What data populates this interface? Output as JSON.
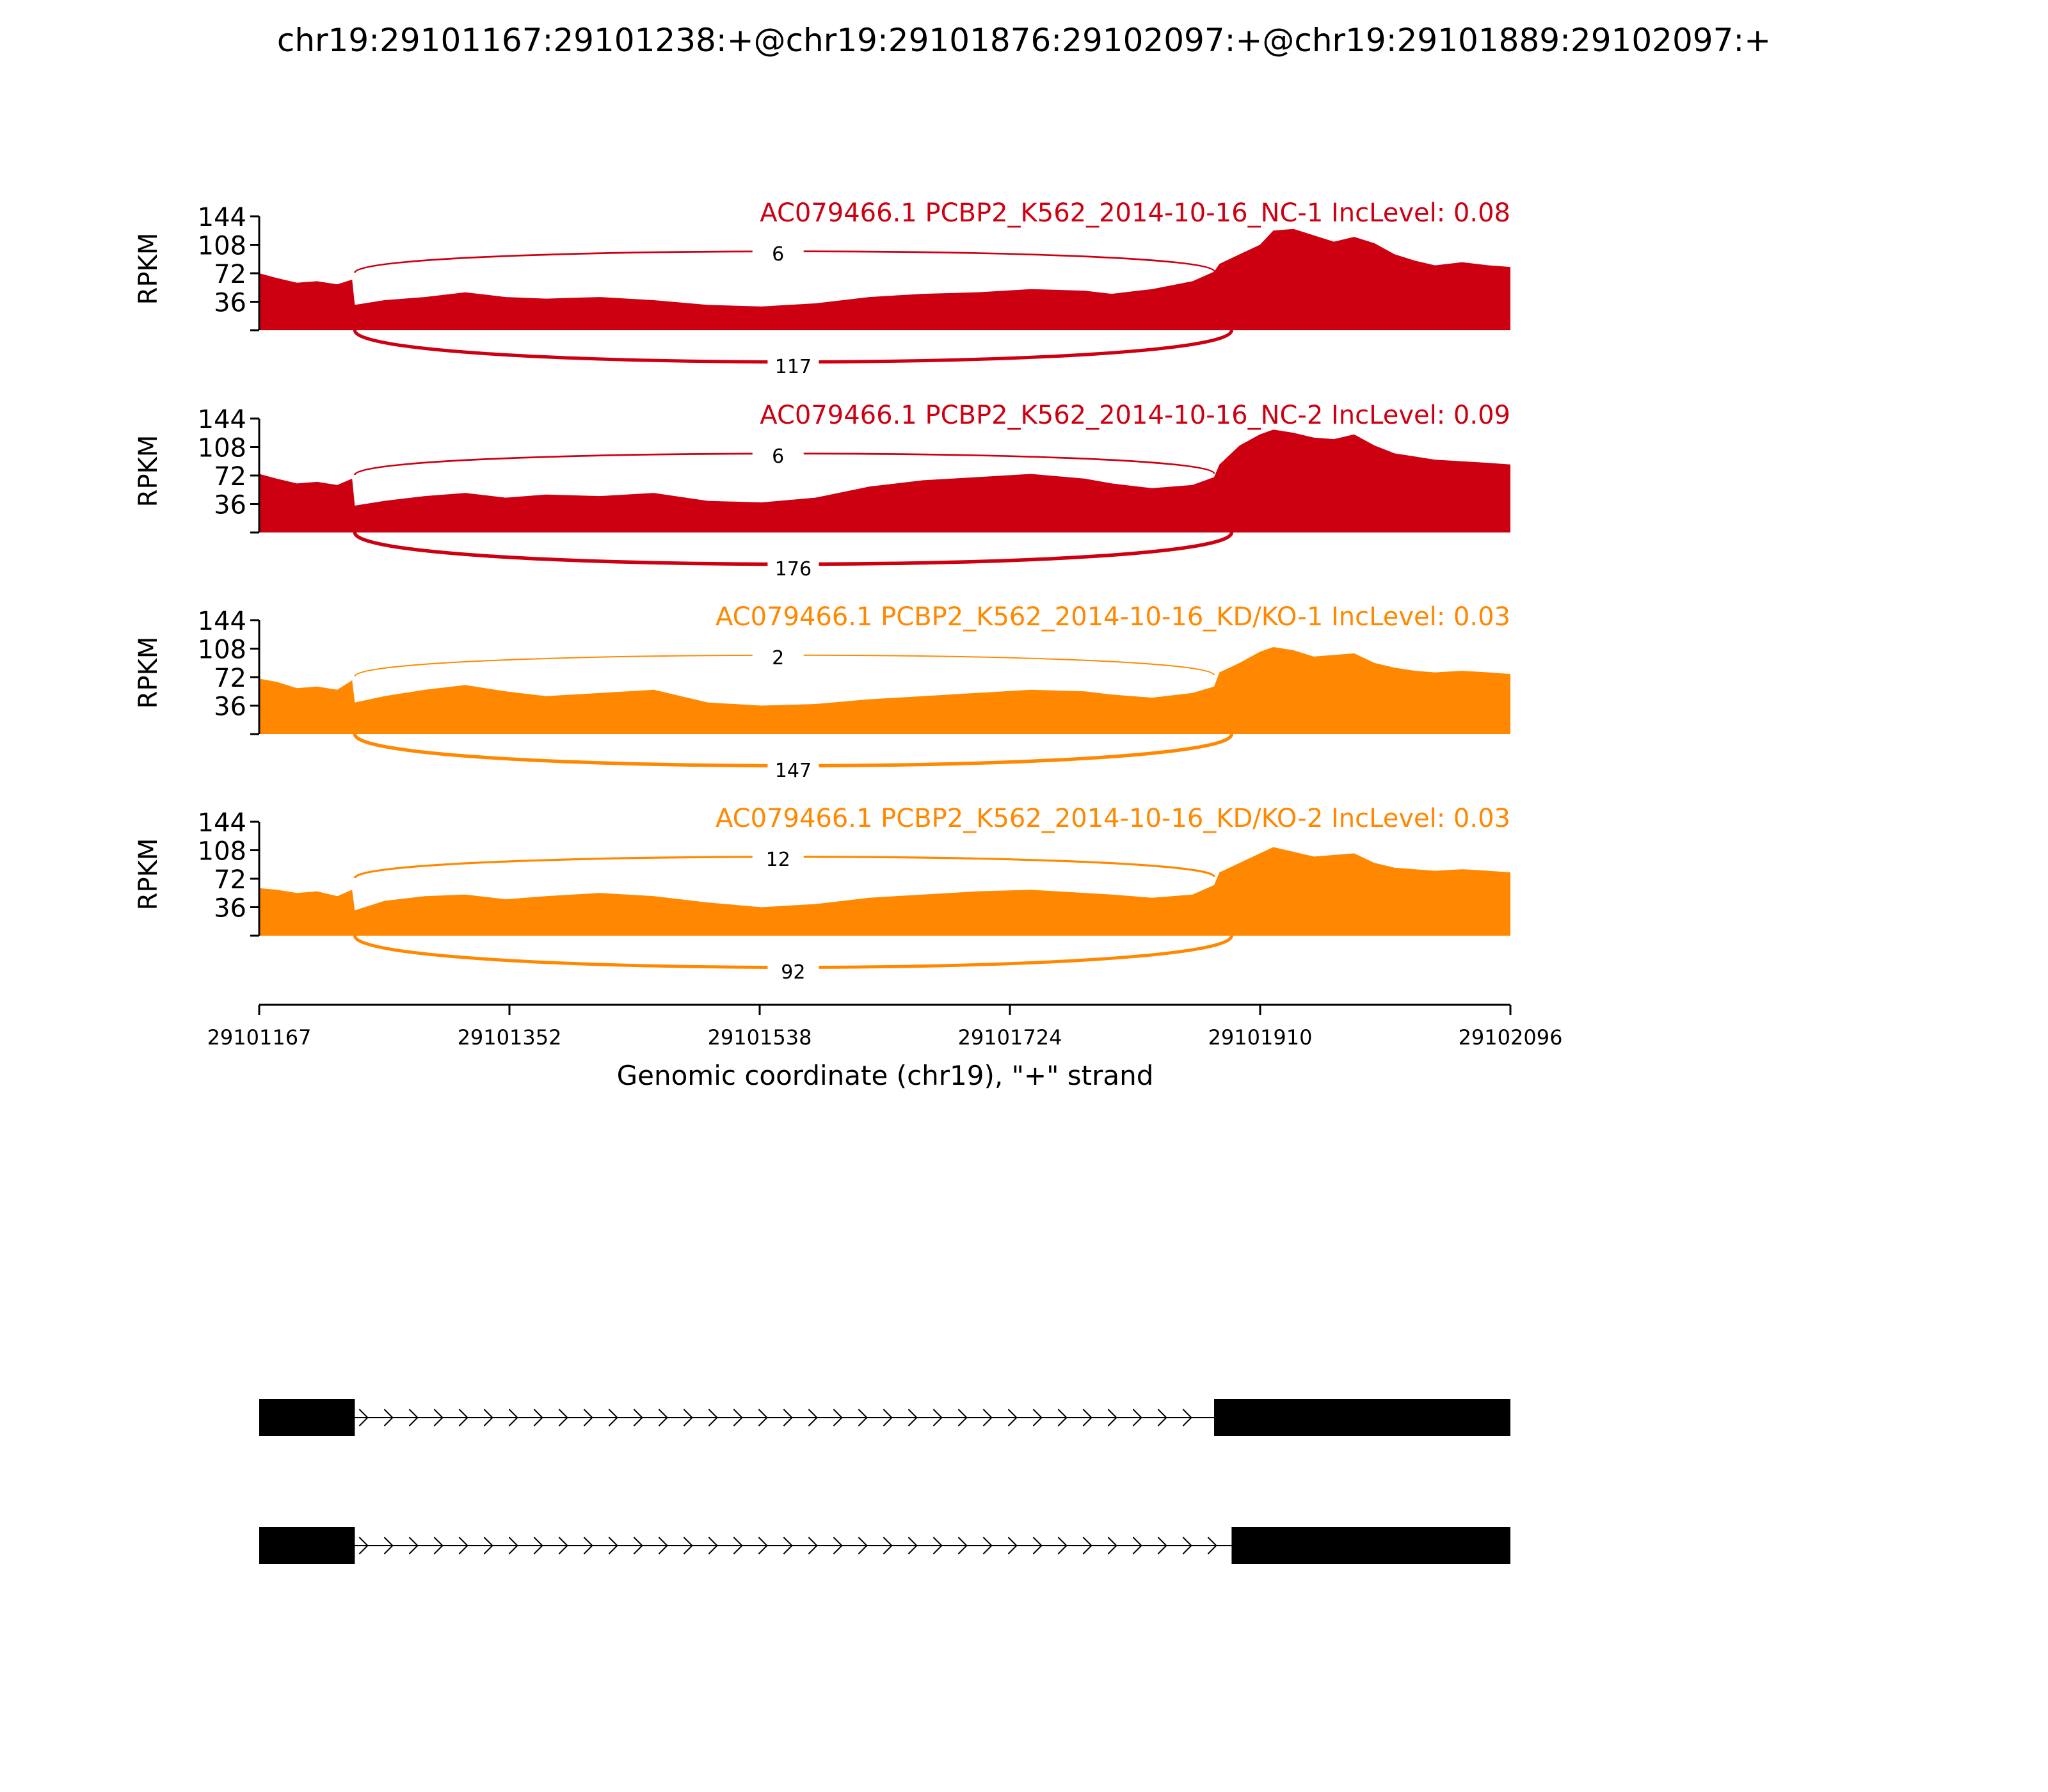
{
  "title": "chr19:29101167:29101238:+@chr19:29101876:29102097:+@chr19:29101889:29102097:+",
  "chart_data": {
    "type": "area",
    "subtype": "sashimi",
    "title": "chr19:29101167:29101238:+@chr19:29101876:29102097:+@chr19:29101889:29102097:+",
    "xlabel": "Genomic coordinate (chr19), \"+\" strand",
    "ylabel": "RPKM",
    "xlim": [
      29101167,
      29102096
    ],
    "ylim": [
      0,
      144
    ],
    "x_ticks": [
      "29101167",
      "29101352",
      "29101538",
      "29101724",
      "29101910",
      "29102096"
    ],
    "y_ticks": [
      "36",
      "72",
      "108",
      "144"
    ],
    "grid": false,
    "colors": {
      "NC": "#cc0011",
      "KD": "#ff8800"
    },
    "coverage_profile": {
      "x": [
        29101167,
        29101180,
        29101195,
        29101210,
        29101225,
        29101236,
        29101238,
        29101260,
        29101290,
        29101320,
        29101350,
        29101380,
        29101420,
        29101460,
        29101500,
        29101540,
        29101580,
        29101620,
        29101660,
        29101700,
        29101740,
        29101780,
        29101800,
        29101830,
        29101860,
        29101876,
        29101880,
        29101895,
        29101910,
        29101920,
        29101935,
        29101950,
        29101965,
        29101980,
        29101995,
        29102010,
        29102025,
        29102040,
        29102060,
        29102080,
        29102096
      ]
    },
    "series": [
      {
        "name": "AC079466.1 PCBP2_K562_2014-10-16_NC-1 IncLevel: 0.08",
        "color": "#cc0011",
        "coverage": [
          72,
          66,
          60,
          62,
          58,
          64,
          32,
          38,
          42,
          48,
          42,
          40,
          42,
          38,
          32,
          30,
          34,
          42,
          46,
          48,
          52,
          50,
          46,
          52,
          62,
          74,
          84,
          96,
          108,
          126,
          128,
          120,
          112,
          118,
          110,
          96,
          88,
          82,
          86,
          82,
          80
        ],
        "junctions": [
          {
            "start": 29101238,
            "end": 29101876,
            "reads": 6,
            "side": "above"
          },
          {
            "start": 29101238,
            "end": 29101889,
            "reads": 117,
            "side": "below"
          }
        ]
      },
      {
        "name": "AC079466.1 PCBP2_K562_2014-10-16_NC-2 IncLevel: 0.09",
        "color": "#cc0011",
        "coverage": [
          74,
          68,
          62,
          64,
          60,
          68,
          34,
          40,
          46,
          50,
          44,
          48,
          46,
          50,
          40,
          38,
          44,
          58,
          66,
          70,
          74,
          68,
          62,
          56,
          60,
          70,
          86,
          110,
          124,
          130,
          126,
          120,
          118,
          124,
          110,
          100,
          96,
          92,
          90,
          88,
          86
        ],
        "junctions": [
          {
            "start": 29101238,
            "end": 29101876,
            "reads": 6,
            "side": "above"
          },
          {
            "start": 29101238,
            "end": 29101889,
            "reads": 176,
            "side": "below"
          }
        ]
      },
      {
        "name": "AC079466.1 PCBP2_K562_2014-10-16_KD/KO-1 IncLevel: 0.03",
        "color": "#ff8800",
        "coverage": [
          70,
          66,
          58,
          60,
          56,
          68,
          40,
          48,
          56,
          62,
          54,
          48,
          52,
          56,
          40,
          36,
          38,
          44,
          48,
          52,
          56,
          54,
          50,
          46,
          52,
          60,
          78,
          90,
          104,
          110,
          106,
          98,
          100,
          102,
          90,
          84,
          80,
          78,
          80,
          78,
          76
        ],
        "junctions": [
          {
            "start": 29101238,
            "end": 29101876,
            "reads": 2,
            "side": "above"
          },
          {
            "start": 29101238,
            "end": 29101889,
            "reads": 147,
            "side": "below"
          }
        ]
      },
      {
        "name": "AC079466.1 PCBP2_K562_2014-10-16_KD/KO-2 IncLevel: 0.03",
        "color": "#ff8800",
        "coverage": [
          60,
          58,
          54,
          56,
          50,
          58,
          32,
          44,
          50,
          52,
          46,
          50,
          54,
          50,
          42,
          36,
          40,
          48,
          52,
          56,
          58,
          54,
          52,
          48,
          52,
          64,
          80,
          92,
          104,
          112,
          106,
          100,
          102,
          104,
          92,
          86,
          84,
          82,
          84,
          82,
          80
        ],
        "junctions": [
          {
            "start": 29101238,
            "end": 29101876,
            "reads": 12,
            "side": "above"
          },
          {
            "start": 29101238,
            "end": 29101889,
            "reads": 92,
            "side": "below"
          }
        ]
      }
    ],
    "isoforms": [
      {
        "exons": [
          [
            29101167,
            29101238
          ],
          [
            29101876,
            29102096
          ]
        ]
      },
      {
        "exons": [
          [
            29101167,
            29101238
          ],
          [
            29101889,
            29102096
          ]
        ]
      }
    ]
  }
}
